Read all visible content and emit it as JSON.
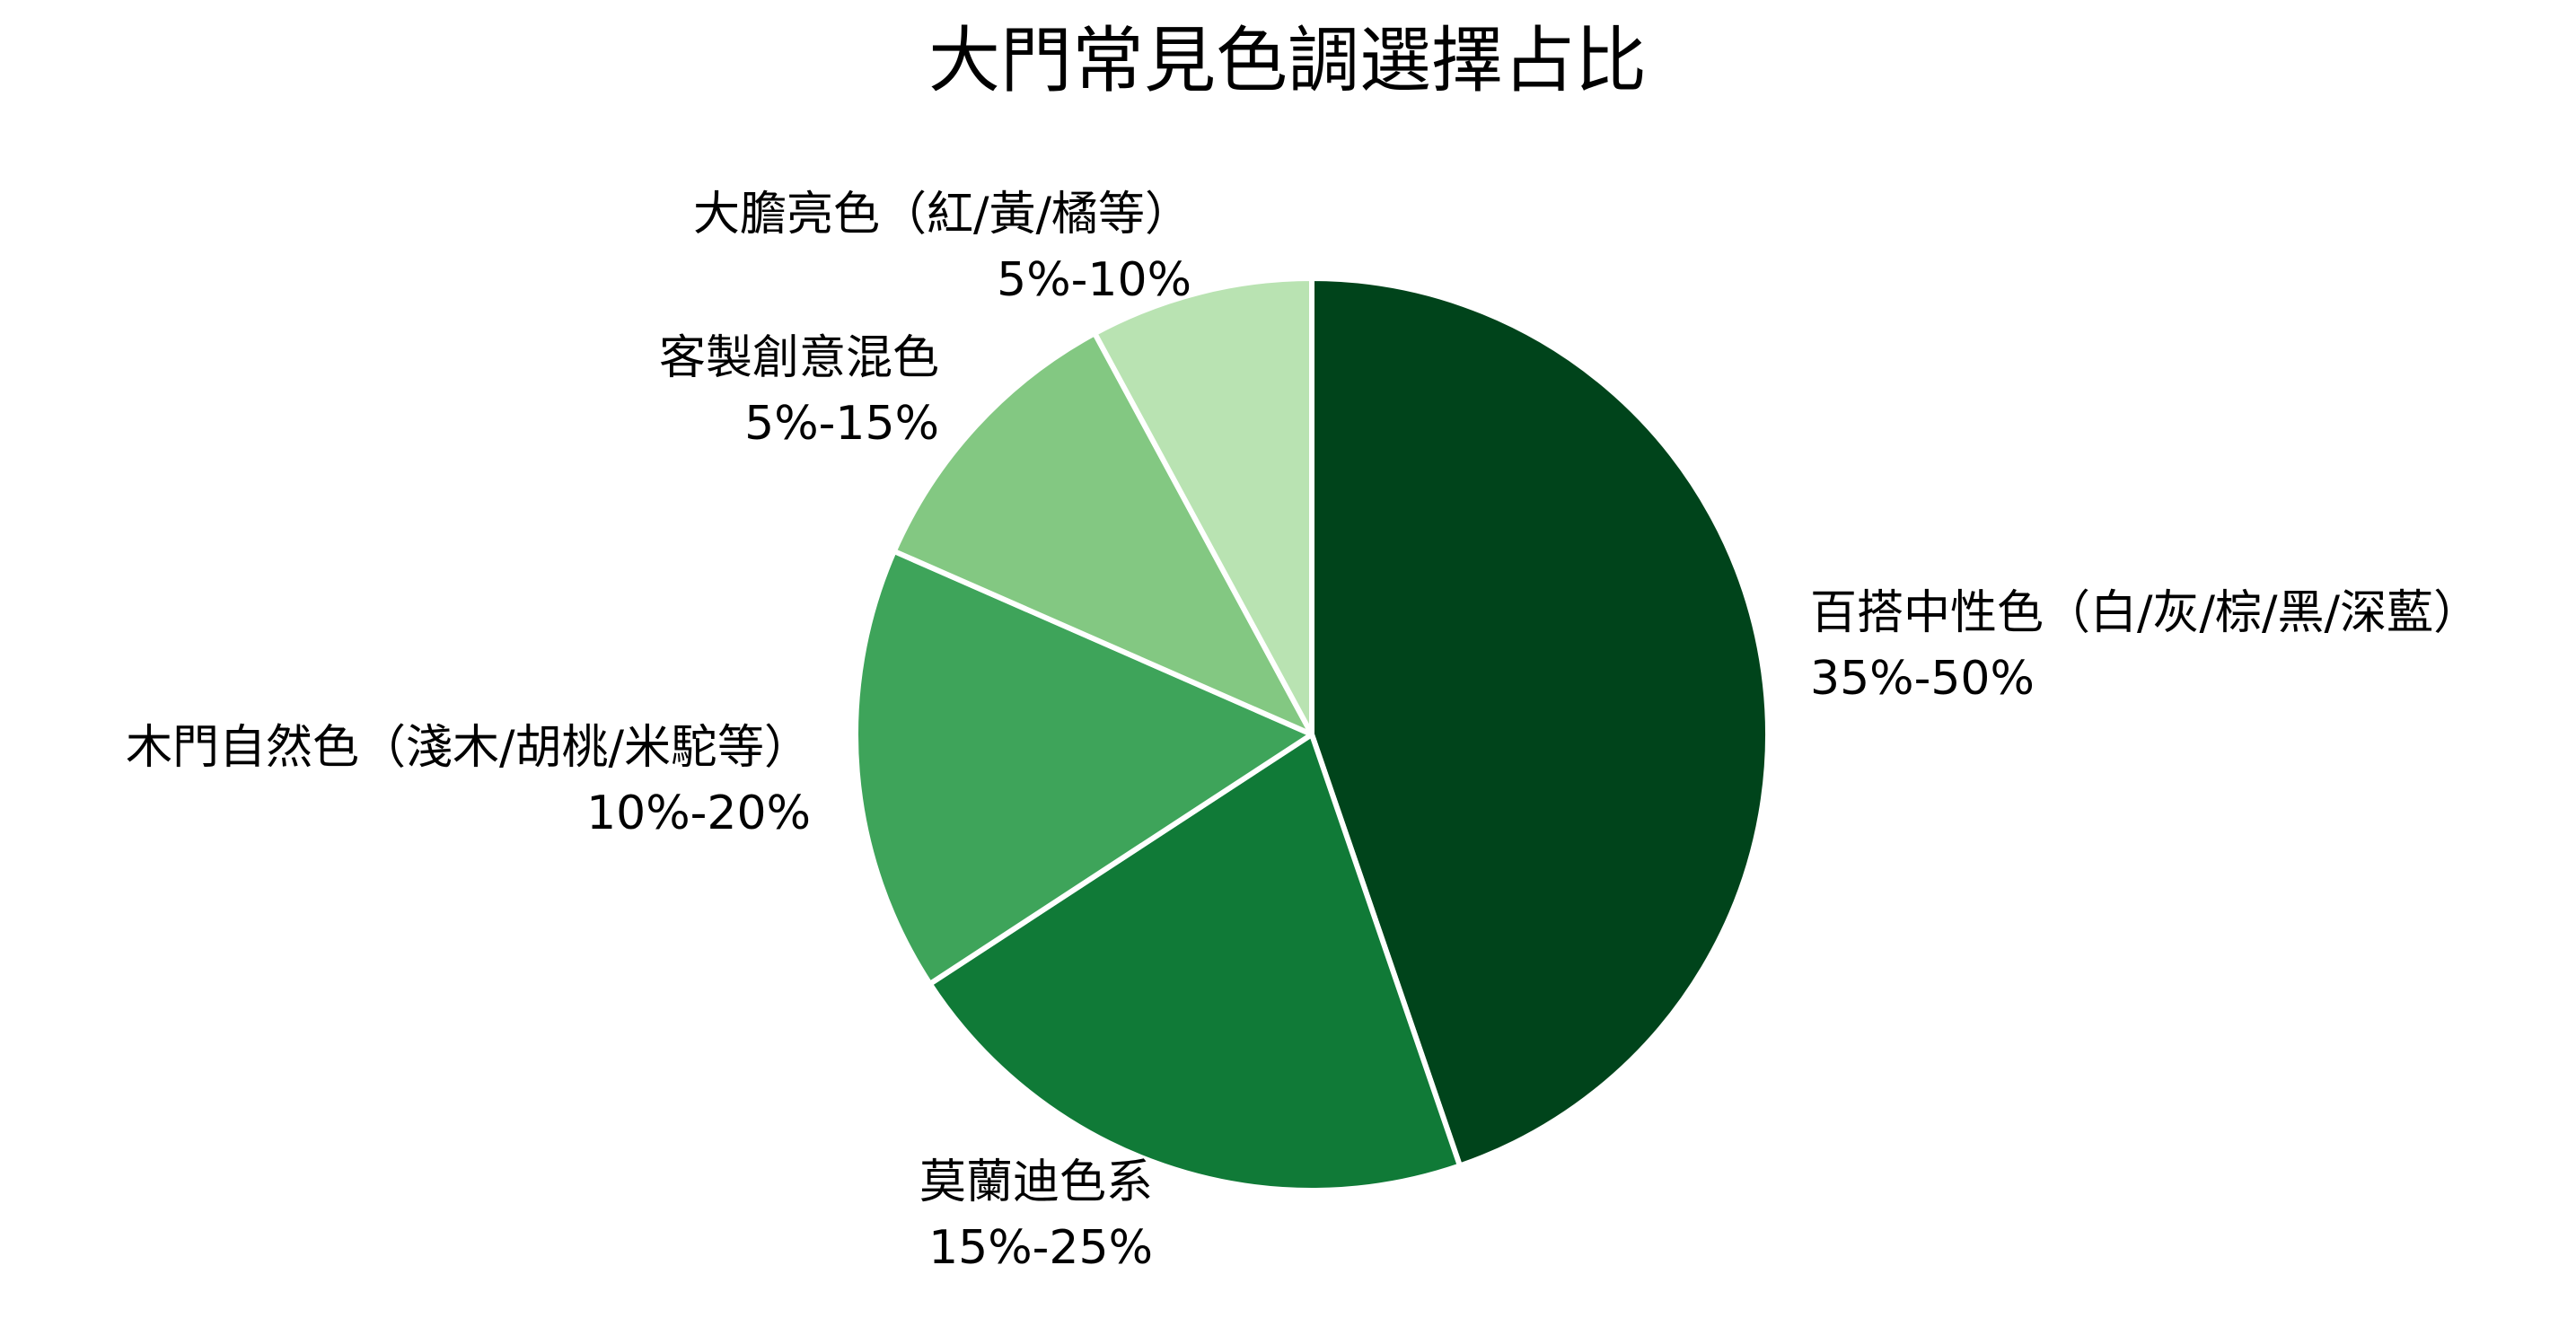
{
  "chart_data": {
    "type": "pie",
    "title": "大門常見色調選擇占比",
    "start_angle_deg": 90,
    "direction": "clockwise",
    "slices": [
      {
        "label": "百搭中性色（白/灰/棕/黑/深藍）",
        "value_label": "35%-50%",
        "value": 42.5,
        "color": "#00441b"
      },
      {
        "label": "莫蘭迪色系",
        "value_label": "15%-25%",
        "value": 20,
        "color": "#107a37"
      },
      {
        "label": "木門自然色（淺木/胡桃/米駝等）",
        "value_label": "10%-20%",
        "value": 15,
        "color": "#3ea45a"
      },
      {
        "label": "客製創意混色",
        "value_label": "5%-15%",
        "value": 10,
        "color": "#83c882"
      },
      {
        "label": "大膽亮色（紅/黃/橘等）",
        "value_label": "5%-10%",
        "value": 7.5,
        "color": "#b9e3b2"
      }
    ]
  }
}
